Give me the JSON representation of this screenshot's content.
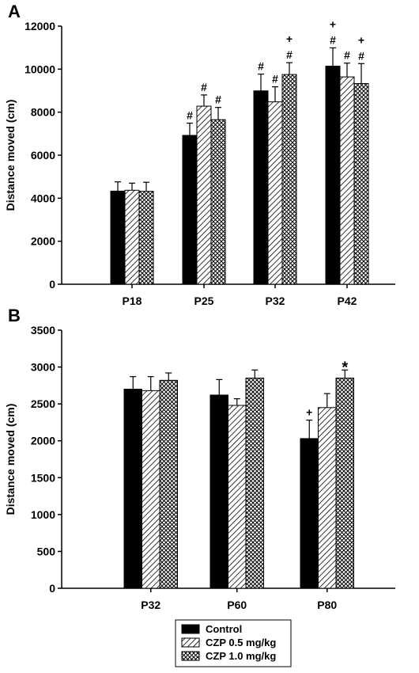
{
  "chart_data": [
    {
      "type": "bar",
      "panel_label": "A",
      "categories": [
        "P18",
        "P25",
        "P32",
        "P42"
      ],
      "ylabel": "Distance moved (cm)",
      "xlabel": "",
      "ylim": [
        0,
        12000
      ],
      "yticks": [
        0,
        2000,
        4000,
        6000,
        8000,
        10000,
        12000
      ],
      "series": [
        {
          "name": "Control",
          "values": [
            4330,
            6920,
            8990,
            10140
          ],
          "errors": [
            430,
            570,
            780,
            850
          ]
        },
        {
          "name": "CZP 0.5 mg/kg",
          "values": [
            4370,
            8280,
            8480,
            9640
          ],
          "errors": [
            330,
            520,
            700,
            640
          ]
        },
        {
          "name": "CZP 1.0 mg/kg",
          "values": [
            4320,
            7650,
            9750,
            9330
          ],
          "errors": [
            420,
            570,
            550,
            930
          ]
        }
      ],
      "annotations": [
        {
          "category": "P25",
          "series": "Control",
          "labels": [
            "#"
          ]
        },
        {
          "category": "P25",
          "series": "CZP 0.5 mg/kg",
          "labels": [
            "#"
          ]
        },
        {
          "category": "P25",
          "series": "CZP 1.0 mg/kg",
          "labels": [
            "#"
          ]
        },
        {
          "category": "P32",
          "series": "Control",
          "labels": [
            "#"
          ]
        },
        {
          "category": "P32",
          "series": "CZP 0.5 mg/kg",
          "labels": [
            "#"
          ]
        },
        {
          "category": "P32",
          "series": "CZP 1.0 mg/kg",
          "labels": [
            "#",
            "+"
          ]
        },
        {
          "category": "P42",
          "series": "Control",
          "labels": [
            "#",
            "+"
          ]
        },
        {
          "category": "P42",
          "series": "CZP 0.5 mg/kg",
          "labels": [
            "#"
          ]
        },
        {
          "category": "P42",
          "series": "CZP 1.0 mg/kg",
          "labels": [
            "#",
            "+"
          ]
        }
      ]
    },
    {
      "type": "bar",
      "panel_label": "B",
      "categories": [
        "P32",
        "P60",
        "P80"
      ],
      "ylabel": "Distance moved (cm)",
      "xlabel": "",
      "ylim": [
        0,
        3500
      ],
      "yticks": [
        0,
        500,
        1000,
        1500,
        2000,
        2500,
        3000,
        3500
      ],
      "series": [
        {
          "name": "Control",
          "values": [
            2700,
            2620,
            2030
          ],
          "errors": [
            170,
            210,
            250
          ]
        },
        {
          "name": "CZP 0.5 mg/kg",
          "values": [
            2680,
            2480,
            2450
          ],
          "errors": [
            190,
            90,
            190
          ]
        },
        {
          "name": "CZP 1.0 mg/kg",
          "values": [
            2820,
            2850,
            2850
          ],
          "errors": [
            100,
            110,
            110
          ]
        }
      ],
      "annotations": [
        {
          "category": "P80",
          "series": "Control",
          "labels": [
            "+"
          ]
        },
        {
          "category": "P80",
          "series": "CZP 1.0 mg/kg",
          "labels": [
            "*"
          ]
        }
      ]
    }
  ],
  "legend": {
    "placement": "bottom-center",
    "items": [
      {
        "label": "Control",
        "pattern": "solid"
      },
      {
        "label": "CZP 0.5 mg/kg",
        "pattern": "diagonal"
      },
      {
        "label": "CZP 1.0 mg/kg",
        "pattern": "crosshatch"
      }
    ]
  },
  "colors": {
    "bar_solid": "#000000",
    "bar_outline": "#000000",
    "axis": "#000000",
    "background": "#ffffff"
  }
}
